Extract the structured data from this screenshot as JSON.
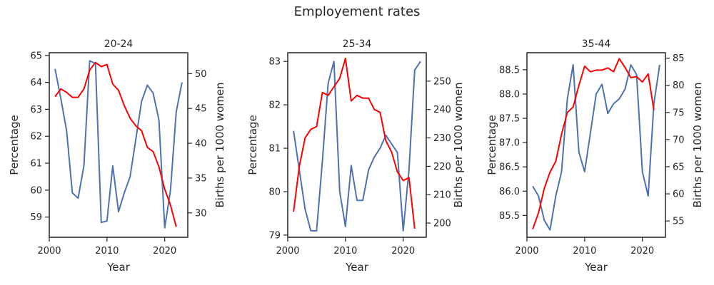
{
  "figure": {
    "suptitle": "Employement rates"
  },
  "colors": {
    "primary_series": "#4c72b0",
    "secondary_series": "#ff0000",
    "axis": "#262626"
  },
  "chart_data": [
    {
      "type": "line",
      "title": "20-24",
      "xlabel": "Year",
      "ylabel": "Percentage",
      "ylabel_right": "Births per 1000 women",
      "xlim": [
        2000,
        2024
      ],
      "xticks": [
        2000,
        2010,
        2020
      ],
      "ylim": [
        58.25,
        65.1
      ],
      "yticks": [
        59,
        60,
        61,
        62,
        63,
        64,
        65
      ],
      "ylim_right": [
        26.5,
        53
      ],
      "yticks_right": [
        30,
        35,
        40,
        45,
        50
      ],
      "series": [
        {
          "axis": "left",
          "color": "#4c72b0",
          "x": [
            2001,
            2002,
            2003,
            2004,
            2005,
            2006,
            2007,
            2008,
            2009,
            2010,
            2011,
            2012,
            2013,
            2014,
            2015,
            2016,
            2017,
            2018,
            2019,
            2020,
            2021,
            2022,
            2023
          ],
          "y": [
            64.5,
            63.4,
            62.2,
            59.9,
            59.7,
            60.9,
            64.8,
            64.7,
            58.8,
            58.85,
            60.9,
            59.2,
            59.9,
            60.5,
            61.9,
            63.3,
            63.9,
            63.6,
            62.6,
            58.6,
            60.0,
            62.9,
            64.0
          ]
        },
        {
          "axis": "right",
          "color": "#ff0000",
          "x": [
            2001,
            2002,
            2003,
            2004,
            2005,
            2006,
            2007,
            2008,
            2009,
            2010,
            2011,
            2012,
            2013,
            2014,
            2015,
            2016,
            2017,
            2018,
            2019,
            2020,
            2021,
            2022
          ],
          "y": [
            46.7,
            47.8,
            47.3,
            46.6,
            46.6,
            47.8,
            50.5,
            51.6,
            51.0,
            51.3,
            48.5,
            47.6,
            45.4,
            43.6,
            42.5,
            41.8,
            39.4,
            38.8,
            36.6,
            33.4,
            31.1,
            28.0
          ]
        }
      ]
    },
    {
      "type": "line",
      "title": "25-34",
      "xlabel": "Year",
      "ylabel": "Percentage",
      "ylabel_right": "Births per 1000 women",
      "xlim": [
        2000,
        2024
      ],
      "xticks": [
        2000,
        2010,
        2020
      ],
      "ylim": [
        78.95,
        83.2
      ],
      "yticks": [
        79,
        80,
        81,
        82,
        83
      ],
      "ylim_right": [
        195,
        260
      ],
      "yticks_right": [
        200,
        210,
        220,
        230,
        240,
        250
      ],
      "series": [
        {
          "axis": "left",
          "color": "#4c72b0",
          "x": [
            2001,
            2002,
            2003,
            2004,
            2005,
            2006,
            2007,
            2008,
            2009,
            2010,
            2011,
            2012,
            2013,
            2014,
            2015,
            2016,
            2017,
            2018,
            2019,
            2020,
            2021,
            2022,
            2023
          ],
          "y": [
            81.4,
            80.5,
            79.6,
            79.1,
            79.1,
            80.7,
            82.5,
            83.0,
            80.0,
            79.2,
            80.6,
            79.8,
            79.8,
            80.5,
            80.8,
            81.0,
            81.3,
            81.1,
            80.9,
            79.1,
            80.5,
            82.8,
            83.0
          ]
        },
        {
          "axis": "right",
          "color": "#ff0000",
          "x": [
            2001,
            2002,
            2003,
            2004,
            2005,
            2006,
            2007,
            2008,
            2009,
            2010,
            2011,
            2012,
            2013,
            2014,
            2015,
            2016,
            2017,
            2018,
            2019,
            2020,
            2021,
            2022
          ],
          "y": [
            204,
            220,
            230,
            233,
            234,
            246,
            245,
            248,
            251,
            258,
            243,
            245,
            244,
            244,
            240,
            239,
            229,
            225,
            218,
            215,
            216,
            198
          ]
        }
      ]
    },
    {
      "type": "line",
      "title": "35-44",
      "xlabel": "Year",
      "ylabel": "Percentage",
      "ylabel_right": "Births per 1000 women",
      "xlim": [
        2000,
        2024
      ],
      "xticks": [
        2000,
        2010,
        2020
      ],
      "ylim": [
        85.05,
        88.85
      ],
      "yticks": [
        85.5,
        86.0,
        86.5,
        87.0,
        87.5,
        88.0,
        88.5
      ],
      "ylim_right": [
        52,
        86
      ],
      "yticks_right": [
        55,
        60,
        65,
        70,
        75,
        80,
        85
      ],
      "series": [
        {
          "axis": "left",
          "color": "#4c72b0",
          "x": [
            2001,
            2002,
            2003,
            2004,
            2005,
            2006,
            2007,
            2008,
            2009,
            2010,
            2011,
            2012,
            2013,
            2014,
            2015,
            2016,
            2017,
            2018,
            2019,
            2020,
            2021,
            2022,
            2023
          ],
          "y": [
            86.1,
            85.9,
            85.4,
            85.2,
            85.9,
            86.4,
            87.9,
            88.6,
            86.8,
            86.4,
            87.2,
            88.0,
            88.2,
            87.6,
            87.8,
            87.9,
            88.1,
            88.6,
            88.4,
            86.4,
            85.9,
            87.8,
            88.6
          ]
        },
        {
          "axis": "right",
          "color": "#ff0000",
          "x": [
            2001,
            2002,
            2003,
            2004,
            2005,
            2006,
            2007,
            2008,
            2009,
            2010,
            2011,
            2012,
            2013,
            2014,
            2015,
            2016,
            2017,
            2018,
            2019,
            2020,
            2021,
            2022
          ],
          "y": [
            53.5,
            56.5,
            61,
            64,
            66,
            71,
            75,
            76,
            80,
            83.5,
            82.5,
            82.8,
            82.8,
            83.2,
            82.5,
            84.9,
            83.3,
            81.4,
            81.6,
            80.6,
            82.1,
            75.4
          ]
        }
      ]
    }
  ]
}
